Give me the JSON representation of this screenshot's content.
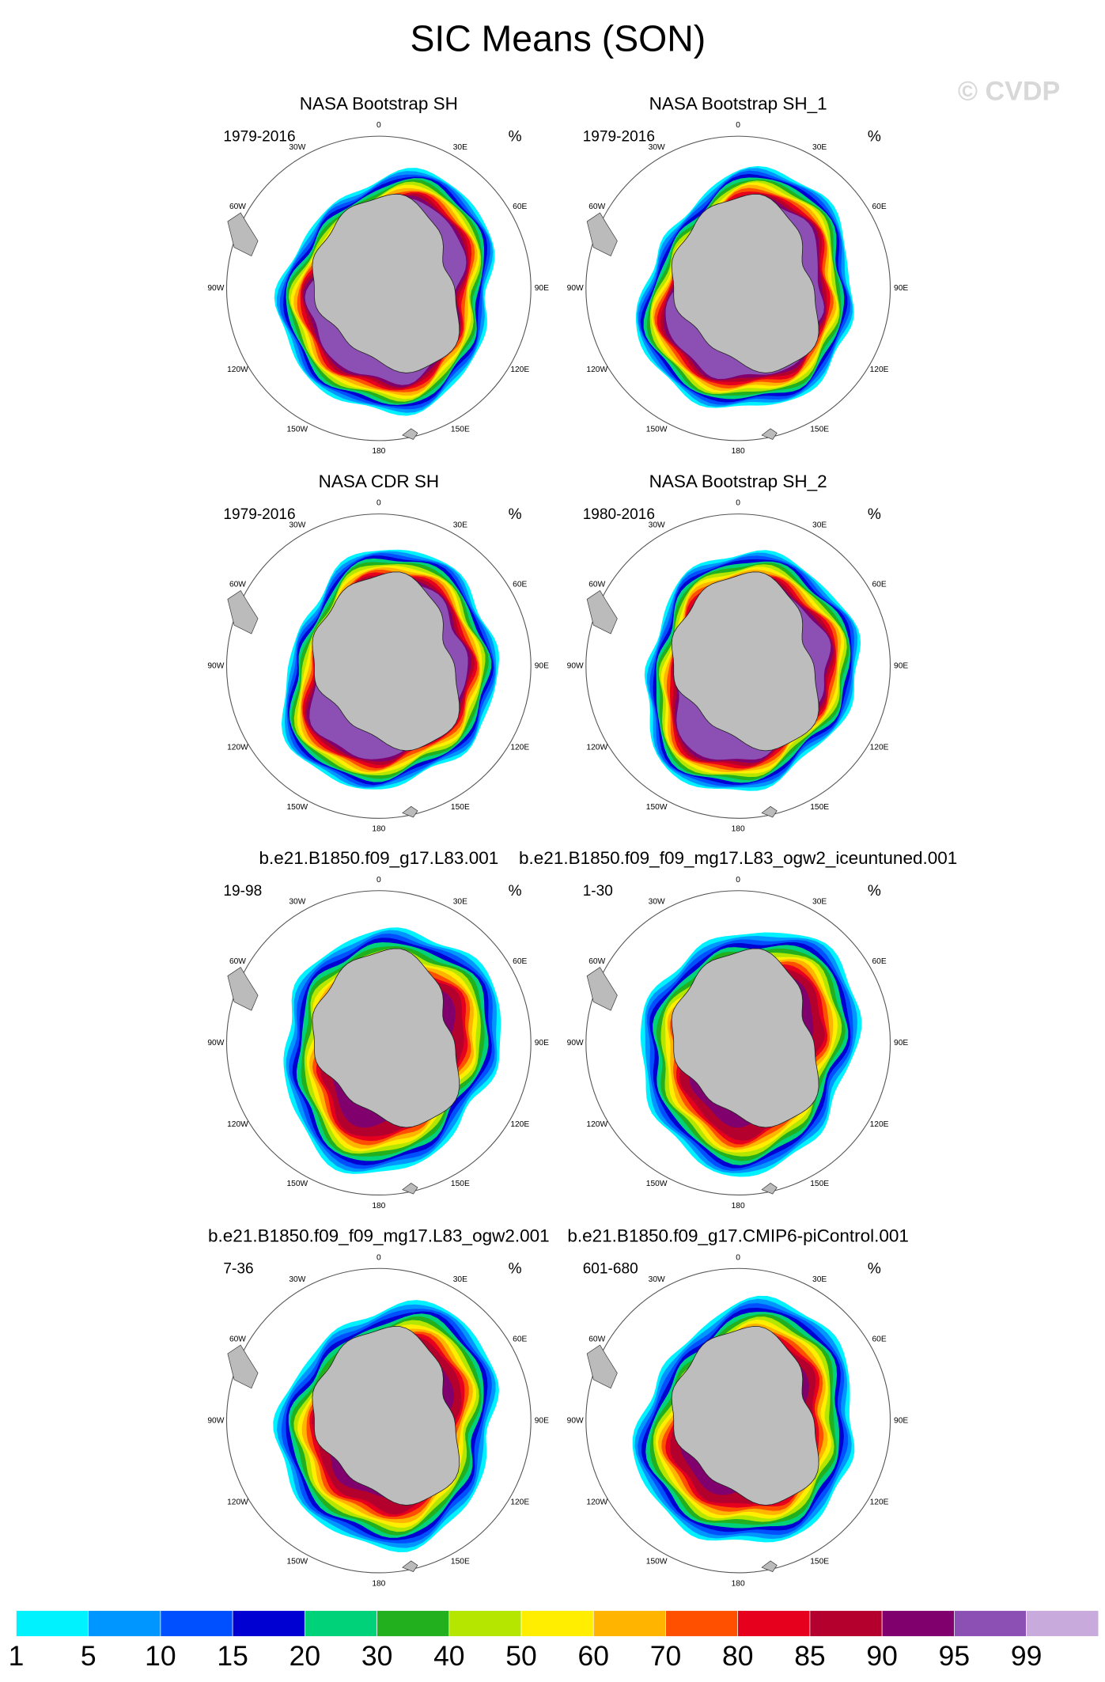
{
  "title": "SIC Means (SON)",
  "watermark": "© CVDP",
  "units": "%",
  "panels": [
    {
      "title": "NASA Bootstrap SH",
      "period": "1979-2016"
    },
    {
      "title": "NASA Bootstrap SH_1",
      "period": "1979-2016"
    },
    {
      "title": "NASA CDR SH",
      "period": "1979-2016"
    },
    {
      "title": "NASA Bootstrap SH_2",
      "period": "1980-2016"
    },
    {
      "title": "b.e21.B1850.f09_g17.L83.001",
      "period": "19-98"
    },
    {
      "title": "b.e21.B1850.f09_f09_mg17.L83_ogw2_iceuntuned.001",
      "period": "1-30"
    },
    {
      "title": "b.e21.B1850.f09_f09_mg17.L83_ogw2.001",
      "period": "7-36"
    },
    {
      "title": "b.e21.B1850.f09_g17.CMIP6-piControl.001",
      "period": "601-680"
    }
  ],
  "longitude_labels": [
    "0",
    "30E",
    "60E",
    "90E",
    "120E",
    "150E",
    "180",
    "150W",
    "120W",
    "90W",
    "60W",
    "30W"
  ],
  "colorbar": {
    "levels": [
      1,
      5,
      10,
      15,
      20,
      30,
      40,
      50,
      60,
      70,
      80,
      85,
      90,
      95,
      99
    ],
    "colors": [
      "#00f2ff",
      "#0096ff",
      "#0050ff",
      "#0000d2",
      "#00d27a",
      "#22b01e",
      "#b4e600",
      "#ffee00",
      "#ffb400",
      "#ff5000",
      "#e6001e",
      "#b4002d",
      "#80006e",
      "#8c50b4",
      "#c8aadc"
    ]
  }
}
